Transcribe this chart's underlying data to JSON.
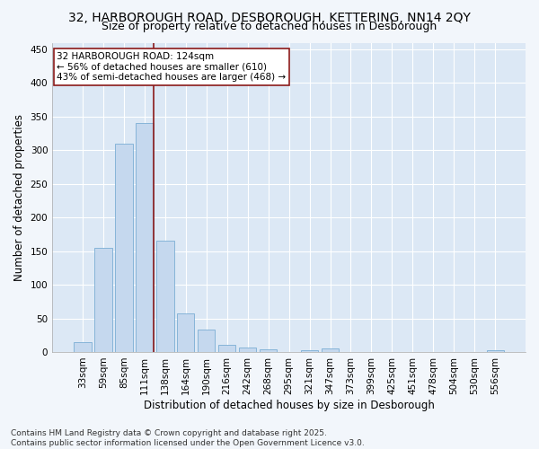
{
  "title_line1": "32, HARBOROUGH ROAD, DESBOROUGH, KETTERING, NN14 2QY",
  "title_line2": "Size of property relative to detached houses in Desborough",
  "xlabel": "Distribution of detached houses by size in Desborough",
  "ylabel": "Number of detached properties",
  "categories": [
    "33sqm",
    "59sqm",
    "85sqm",
    "111sqm",
    "138sqm",
    "164sqm",
    "190sqm",
    "216sqm",
    "242sqm",
    "268sqm",
    "295sqm",
    "321sqm",
    "347sqm",
    "373sqm",
    "399sqm",
    "425sqm",
    "451sqm",
    "478sqm",
    "504sqm",
    "530sqm",
    "556sqm"
  ],
  "values": [
    15,
    155,
    310,
    340,
    165,
    57,
    33,
    10,
    7,
    4,
    0,
    3,
    5,
    0,
    0,
    0,
    0,
    0,
    0,
    0,
    2
  ],
  "bar_color": "#c5d8ee",
  "bar_edgecolor": "#7badd4",
  "vline_color": "#8b1a1a",
  "annotation_text": "32 HARBOROUGH ROAD: 124sqm\n← 56% of detached houses are smaller (610)\n43% of semi-detached houses are larger (468) →",
  "annotation_box_color": "#ffffff",
  "annotation_box_edgecolor": "#8b1a1a",
  "ylim": [
    0,
    460
  ],
  "yticks": [
    0,
    50,
    100,
    150,
    200,
    250,
    300,
    350,
    400,
    450
  ],
  "background_color": "#dce8f5",
  "grid_color": "#ffffff",
  "footer_text": "Contains HM Land Registry data © Crown copyright and database right 2025.\nContains public sector information licensed under the Open Government Licence v3.0.",
  "title_fontsize": 10,
  "subtitle_fontsize": 9,
  "axis_label_fontsize": 8.5,
  "tick_fontsize": 7.5,
  "annotation_fontsize": 7.5,
  "footer_fontsize": 6.5,
  "fig_facecolor": "#f2f6fb"
}
